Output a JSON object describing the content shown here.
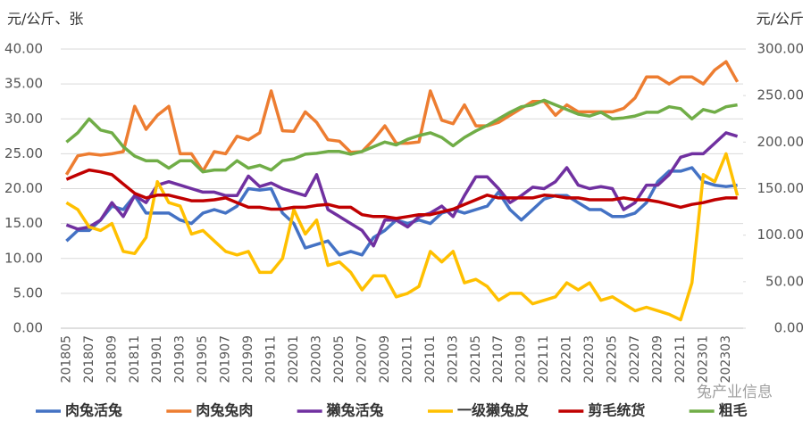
{
  "chart_data": {
    "type": "line",
    "y_axis_label": "元/公斤、张",
    "y2_axis_label": "元/公斤",
    "watermark": "兔产业信息",
    "categories": [
      "201805",
      null,
      "201807",
      null,
      "201809",
      null,
      "201811",
      null,
      "201901",
      null,
      "201903",
      null,
      "201905",
      null,
      "201907",
      null,
      "201909",
      null,
      "201911",
      null,
      "202001",
      null,
      "202003",
      null,
      "202005",
      null,
      "202007",
      null,
      "202009",
      null,
      "202011",
      null,
      "202101",
      null,
      "202103",
      null,
      "202105",
      null,
      "202107",
      null,
      "202109",
      null,
      "202111",
      null,
      "202201",
      null,
      "202203",
      null,
      "202205",
      null,
      "202207",
      null,
      "202209",
      null,
      "202211",
      null,
      "202301",
      null,
      "202303",
      null
    ],
    "ylim": [
      0,
      40
    ],
    "yticks": [
      {
        "value": 0,
        "label": "0.00"
      },
      {
        "value": 5,
        "label": "5.00"
      },
      {
        "value": 10,
        "label": "10.00"
      },
      {
        "value": 15,
        "label": "15.00"
      },
      {
        "value": 20,
        "label": "20.00"
      },
      {
        "value": 25,
        "label": "25.00"
      },
      {
        "value": 30,
        "label": "30.00"
      },
      {
        "value": 35,
        "label": "35.00"
      },
      {
        "value": 40,
        "label": "40.00"
      }
    ],
    "y2lim": [
      0,
      300
    ],
    "y2ticks": [
      {
        "value": 0,
        "label": "0.00"
      },
      {
        "value": 50,
        "label": "50.00"
      },
      {
        "value": 100,
        "label": "100.00"
      },
      {
        "value": 150,
        "label": "150.00"
      },
      {
        "value": 200,
        "label": "200.00"
      },
      {
        "value": 250,
        "label": "250.00"
      },
      {
        "value": 300,
        "label": "300.00"
      }
    ],
    "grid": true,
    "legend": "bottom",
    "series": [
      {
        "name": "肉兔活兔",
        "color": "#4472c4",
        "values": [
          12.5,
          14,
          14,
          15.5,
          17.5,
          17,
          19,
          16.5,
          16.5,
          16.5,
          15.5,
          15,
          16.5,
          17,
          16.5,
          17.5,
          20,
          19.8,
          20,
          16.5,
          15,
          11.5,
          12,
          12.5,
          10.5,
          11,
          10.5,
          13,
          14,
          15.5,
          15,
          15.5,
          15,
          16.5,
          17,
          16.5,
          17,
          17.5,
          19.5,
          17,
          15.5,
          17,
          18.5,
          19,
          19,
          18,
          17,
          17,
          16,
          16,
          16.5,
          18,
          21,
          22.5,
          22.5,
          23,
          21,
          20.5,
          20.3,
          20.5
        ]
      },
      {
        "name": "肉兔兔肉",
        "color": "#ed7d31",
        "values": [
          22,
          24.7,
          25,
          24.8,
          25,
          25.3,
          31.8,
          28.5,
          30.5,
          31.8,
          25,
          25,
          22.5,
          25.3,
          25,
          27.5,
          27,
          28,
          34,
          28.3,
          28.2,
          31,
          29.5,
          27,
          26.8,
          25.2,
          25.3,
          27,
          29,
          26.5,
          26.5,
          26.7,
          34,
          29.8,
          29.3,
          32,
          29,
          29,
          29.5,
          30.5,
          31.5,
          32.5,
          32.5,
          30.5,
          32,
          31,
          31,
          31,
          31,
          31.5,
          33,
          36,
          36,
          35,
          36,
          36,
          35,
          37,
          38.2,
          35.3
        ]
      },
      {
        "name": "獭兔活兔",
        "color": "#7030a0",
        "values": [
          14.8,
          14.2,
          14.5,
          15.5,
          18,
          16,
          19,
          18,
          20.5,
          21,
          20.5,
          20,
          19.5,
          19.5,
          19,
          19,
          21.8,
          20.3,
          20.8,
          20,
          19.5,
          19,
          22,
          17,
          16,
          15,
          14,
          11.8,
          15.5,
          15.5,
          14.5,
          16,
          16.5,
          17.5,
          16,
          19,
          21.7,
          21.7,
          20,
          18,
          19,
          20.2,
          20,
          21,
          23,
          20.5,
          20,
          20.3,
          20,
          17,
          18,
          20.5,
          20.5,
          22,
          24.5,
          25,
          25,
          26.5,
          28,
          27.5
        ]
      },
      {
        "name": "一级獭兔皮",
        "color": "#ffc000",
        "values": [
          18,
          17,
          14.5,
          14,
          15,
          11,
          10.7,
          13,
          21,
          18,
          17.5,
          13.5,
          14,
          12.5,
          11,
          10.5,
          11,
          8,
          8,
          10,
          17,
          13.5,
          15.5,
          9,
          9.5,
          8,
          5.5,
          7.5,
          7.5,
          4.5,
          5,
          6,
          11,
          9.5,
          11,
          6.5,
          7,
          6,
          4,
          5,
          5,
          3.5,
          4,
          4.5,
          6.5,
          5.5,
          6.5,
          4,
          4.5,
          3.5,
          2.5,
          3,
          2.5,
          2,
          1.2,
          6.5,
          22,
          21,
          25,
          19
        ]
      },
      {
        "name": "剪毛统货",
        "color": "#c00000",
        "axis": "y2",
        "values": [
          160,
          165,
          170,
          168,
          165,
          155,
          145,
          140,
          143,
          143,
          140,
          137,
          137,
          138,
          140,
          135,
          130,
          130,
          128,
          128,
          130,
          130,
          132,
          133,
          130,
          130,
          122,
          120,
          120,
          118,
          120,
          122,
          122,
          125,
          128,
          133,
          138,
          143,
          140,
          140,
          140,
          140,
          143,
          142,
          140,
          140,
          138,
          138,
          138,
          140,
          138,
          138,
          136,
          133,
          130,
          133,
          135,
          138,
          140,
          140
        ]
      },
      {
        "name": "粗毛",
        "color": "#70ad47",
        "axis": "y2",
        "values": [
          200,
          210,
          225,
          213,
          210,
          195,
          185,
          180,
          180,
          172,
          180,
          180,
          168,
          170,
          170,
          180,
          172,
          175,
          170,
          180,
          182,
          187,
          188,
          190,
          190,
          187,
          190,
          195,
          200,
          197,
          203,
          207,
          210,
          205,
          196,
          205,
          212,
          218,
          225,
          232,
          238,
          240,
          245,
          240,
          235,
          230,
          228,
          232,
          225,
          226,
          228,
          232,
          232,
          238,
          236,
          225,
          235,
          232,
          238,
          240
        ]
      }
    ]
  }
}
